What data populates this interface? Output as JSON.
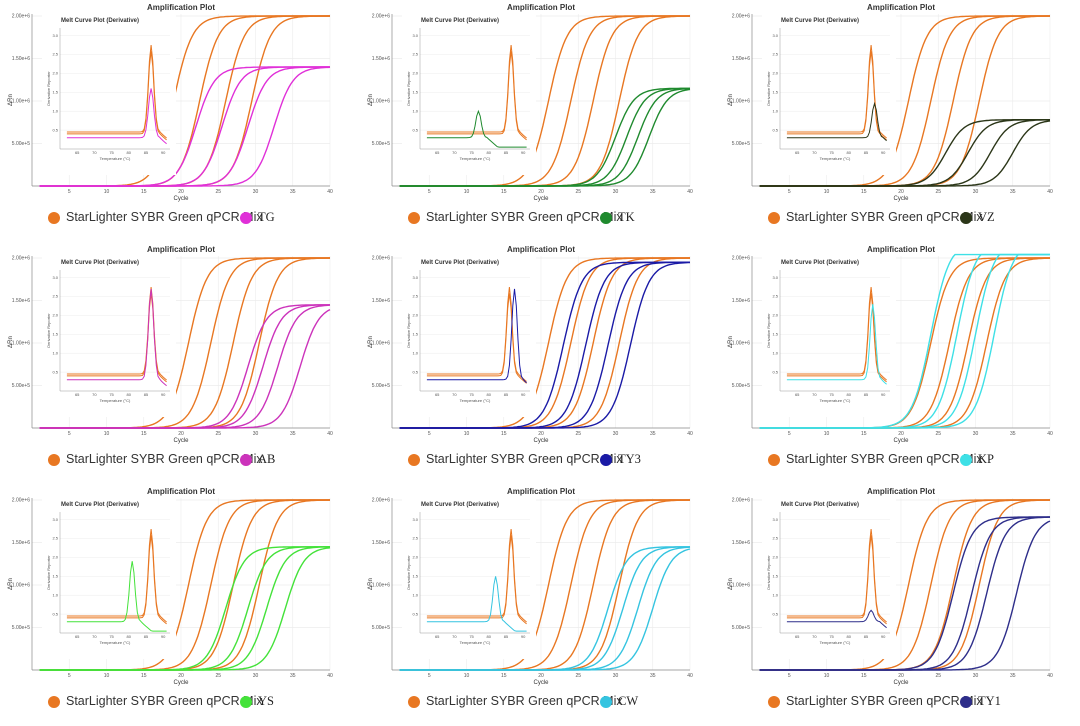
{
  "figure": {
    "reference_label": "StarLighter SYBR Green qPCR Mix",
    "reference_color": "#e87722"
  },
  "chart_data": [
    {
      "type": "line",
      "title": "Amplification Plot",
      "xlabel": "Cycle",
      "ylabel": "ΔRn",
      "xlim": [
        0,
        40
      ],
      "ylim": [
        0,
        2000000
      ],
      "xticks": [
        "5",
        "10",
        "15",
        "20",
        "25",
        "30",
        "35",
        "40"
      ],
      "yticks": [
        "5.00e+5",
        "1.00e+6",
        "1.50e+6",
        "2.00e+6"
      ],
      "series": [
        {
          "name": "StarLighter SYBR Green qPCR Mix",
          "color": "#e87722",
          "plateau": 2000000,
          "ct": [
            19,
            22.5,
            26,
            29.5
          ]
        },
        {
          "name": "TG",
          "color": "#e030d8",
          "plateau": 1400000,
          "ct": [
            22,
            25.5,
            29,
            32.5
          ]
        }
      ],
      "inset": {
        "title": "Melt Curve Plot (Derivative)",
        "xlabel": "Temperature (°C)",
        "ylabel": "Derivative Reporter",
        "xticks": [
          "65",
          "70",
          "75",
          "80",
          "85",
          "90"
        ],
        "yticks": [
          "0.5",
          "1.0",
          "1.5",
          "2.0",
          "2.5",
          "3.0"
        ],
        "ref_peak_temp": 86.5,
        "ref_peak_height": 2.3,
        "sample_peak_temp": 86.5,
        "sample_peak_height": 1.3
      }
    },
    {
      "type": "line",
      "title": "Amplification Plot",
      "xlabel": "Cycle",
      "ylabel": "ΔRn",
      "xlim": [
        0,
        40
      ],
      "ylim": [
        0,
        2000000
      ],
      "xticks": [
        "5",
        "10",
        "15",
        "20",
        "25",
        "30",
        "35",
        "40"
      ],
      "yticks": [
        "5.00e+5",
        "1.00e+6",
        "1.50e+6",
        "2.00e+6"
      ],
      "series": [
        {
          "name": "StarLighter SYBR Green qPCR Mix",
          "color": "#e87722",
          "plateau": 2000000,
          "ct": [
            21,
            24,
            27,
            30.5
          ]
        },
        {
          "name": "TK",
          "color": "#1f8a2e",
          "plateau": 1150000,
          "ct": [
            30,
            31.5,
            33,
            34.5
          ]
        }
      ],
      "inset": {
        "title": "Melt Curve Plot (Derivative)",
        "xlabel": "Temperature (°C)",
        "ylabel": "Derivative Reporter",
        "xticks": [
          "65",
          "70",
          "75",
          "80",
          "85",
          "90"
        ],
        "yticks": [
          "0.5",
          "1.0",
          "1.5",
          "2.0",
          "2.5",
          "3.0"
        ],
        "ref_peak_temp": 86.5,
        "ref_peak_height": 2.3,
        "sample_peak_temp": 77,
        "sample_peak_height": 0.7
      }
    },
    {
      "type": "line",
      "title": "Amplification Plot",
      "xlabel": "Cycle",
      "ylabel": "ΔRn",
      "xlim": [
        0,
        40
      ],
      "ylim": [
        0,
        2000000
      ],
      "xticks": [
        "5",
        "10",
        "15",
        "20",
        "25",
        "30",
        "35",
        "40"
      ],
      "yticks": [
        "5.00e+5",
        "1.00e+6",
        "1.50e+6",
        "2.00e+6"
      ],
      "series": [
        {
          "name": "StarLighter SYBR Green qPCR Mix",
          "color": "#e87722",
          "plateau": 2000000,
          "ct": [
            21,
            24,
            27,
            30.5
          ]
        },
        {
          "name": "VZ",
          "color": "#2b3618",
          "plateau": 780000,
          "ct": [
            26,
            29,
            32,
            35
          ]
        }
      ],
      "inset": {
        "title": "Melt Curve Plot (Derivative)",
        "xlabel": "Temperature (°C)",
        "ylabel": "Derivative Reporter",
        "xticks": [
          "65",
          "70",
          "75",
          "80",
          "85",
          "90"
        ],
        "yticks": [
          "0.5",
          "1.0",
          "1.5",
          "2.0",
          "2.5",
          "3.0"
        ],
        "ref_peak_temp": 86.5,
        "ref_peak_height": 2.3,
        "sample_peak_temp": 87.5,
        "sample_peak_height": 0.9
      }
    },
    {
      "type": "line",
      "title": "Amplification Plot",
      "xlabel": "Cycle",
      "ylabel": "ΔRn",
      "xlim": [
        0,
        40
      ],
      "ylim": [
        0,
        2000000
      ],
      "xticks": [
        "5",
        "10",
        "15",
        "20",
        "25",
        "30",
        "35",
        "40"
      ],
      "yticks": [
        "5.00e+5",
        "1.00e+6",
        "1.50e+6",
        "2.00e+6"
      ],
      "series": [
        {
          "name": "StarLighter SYBR Green qPCR Mix",
          "color": "#e87722",
          "plateau": 2000000,
          "ct": [
            21,
            24,
            27,
            30.5
          ]
        },
        {
          "name": "AB",
          "color": "#cc33bb",
          "plateau": 1450000,
          "ct": [
            29,
            31,
            33,
            36
          ]
        }
      ],
      "inset": {
        "title": "Melt Curve Plot (Derivative)",
        "xlabel": "Temperature (°C)",
        "ylabel": "Derivative Reporter",
        "xticks": [
          "65",
          "70",
          "75",
          "80",
          "85",
          "90"
        ],
        "yticks": [
          "0.5",
          "1.0",
          "1.5",
          "2.0",
          "2.5",
          "3.0"
        ],
        "ref_peak_temp": 86.5,
        "ref_peak_height": 2.3,
        "sample_peak_temp": 86.5,
        "sample_peak_height": 2.4
      }
    },
    {
      "type": "line",
      "title": "Amplification Plot",
      "xlabel": "Cycle",
      "ylabel": "ΔRn",
      "xlim": [
        0,
        40
      ],
      "ylim": [
        0,
        2000000
      ],
      "xticks": [
        "5",
        "10",
        "15",
        "20",
        "25",
        "30",
        "35",
        "40"
      ],
      "yticks": [
        "5.00e+5",
        "1.00e+6",
        "1.50e+6",
        "2.00e+6"
      ],
      "series": [
        {
          "name": "StarLighter SYBR Green qPCR Mix",
          "color": "#e87722",
          "plateau": 2000000,
          "ct": [
            21,
            24,
            27,
            30.5
          ]
        },
        {
          "name": "TY3",
          "color": "#1a1aa6",
          "plateau": 1950000,
          "ct": [
            23,
            26,
            29,
            32
          ]
        }
      ],
      "inset": {
        "title": "Melt Curve Plot (Derivative)",
        "xlabel": "Temperature (°C)",
        "ylabel": "Derivative Reporter",
        "xticks": [
          "65",
          "70",
          "75",
          "80",
          "85",
          "90"
        ],
        "yticks": [
          "0.5",
          "1.0",
          "1.5",
          "2.0",
          "2.5",
          "3.0"
        ],
        "ref_peak_temp": 86,
        "ref_peak_height": 2.3,
        "sample_peak_temp": 87.5,
        "sample_peak_height": 2.4
      }
    },
    {
      "type": "line",
      "title": "Amplification Plot",
      "xlabel": "Cycle",
      "ylabel": "ΔRn",
      "xlim": [
        0,
        40
      ],
      "ylim": [
        0,
        2000000
      ],
      "xticks": [
        "5",
        "10",
        "15",
        "20",
        "25",
        "30",
        "35",
        "40"
      ],
      "yticks": [
        "5.00e+5",
        "1.00e+6",
        "1.50e+6",
        "2.00e+6"
      ],
      "series": [
        {
          "name": "StarLighter SYBR Green qPCR Mix",
          "color": "#e87722",
          "plateau": 2000000,
          "ct": [
            24,
            26.5,
            29,
            31.5
          ]
        },
        {
          "name": "KP",
          "color": "#3ee0e6",
          "plateau": 2200000,
          "ct": [
            24,
            27.5,
            30,
            32.5
          ]
        }
      ],
      "inset": {
        "title": "Melt Curve Plot (Derivative)",
        "xlabel": "Temperature (°C)",
        "ylabel": "Derivative Reporter",
        "xticks": [
          "65",
          "70",
          "75",
          "80",
          "85",
          "90"
        ],
        "yticks": [
          "0.5",
          "1.0",
          "1.5",
          "2.0",
          "2.5",
          "3.0"
        ],
        "ref_peak_temp": 86.5,
        "ref_peak_height": 2.3,
        "sample_peak_temp": 87,
        "sample_peak_height": 2.0
      }
    },
    {
      "type": "line",
      "title": "Amplification Plot",
      "xlabel": "Cycle",
      "ylabel": "ΔRn",
      "xlim": [
        0,
        40
      ],
      "ylim": [
        0,
        2000000
      ],
      "xticks": [
        "5",
        "10",
        "15",
        "20",
        "25",
        "30",
        "35",
        "40"
      ],
      "yticks": [
        "5.00e+5",
        "1.00e+6",
        "1.50e+6",
        "2.00e+6"
      ],
      "series": [
        {
          "name": "StarLighter SYBR Green qPCR Mix",
          "color": "#e87722",
          "plateau": 2000000,
          "ct": [
            21,
            24,
            27,
            30.5
          ]
        },
        {
          "name": "YS",
          "color": "#44e23a",
          "plateau": 1450000,
          "ct": [
            26,
            29,
            31.5,
            34
          ]
        }
      ],
      "inset": {
        "title": "Melt Curve Plot (Derivative)",
        "xlabel": "Temperature (°C)",
        "ylabel": "Derivative Reporter",
        "xticks": [
          "65",
          "70",
          "75",
          "80",
          "85",
          "90"
        ],
        "yticks": [
          "0.5",
          "1.0",
          "1.5",
          "2.0",
          "2.5",
          "3.0"
        ],
        "ref_peak_temp": 86.5,
        "ref_peak_height": 2.3,
        "sample_peak_temp": 81,
        "sample_peak_height": 1.6
      }
    },
    {
      "type": "line",
      "title": "Amplification Plot",
      "xlabel": "Cycle",
      "ylabel": "ΔRn",
      "xlim": [
        0,
        40
      ],
      "ylim": [
        0,
        2000000
      ],
      "xticks": [
        "5",
        "10",
        "15",
        "20",
        "25",
        "30",
        "35",
        "40"
      ],
      "yticks": [
        "5.00e+5",
        "1.00e+6",
        "1.50e+6",
        "2.00e+6"
      ],
      "series": [
        {
          "name": "StarLighter SYBR Green qPCR Mix",
          "color": "#e87722",
          "plateau": 2000000,
          "ct": [
            21,
            24,
            27,
            30.5
          ]
        },
        {
          "name": "CW",
          "color": "#35c4e0",
          "plateau": 1450000,
          "ct": [
            29,
            31,
            33,
            35
          ]
        }
      ],
      "inset": {
        "title": "Melt Curve Plot (Derivative)",
        "xlabel": "Temperature (°C)",
        "ylabel": "Derivative Reporter",
        "xticks": [
          "65",
          "70",
          "75",
          "80",
          "85",
          "90"
        ],
        "yticks": [
          "0.5",
          "1.0",
          "1.5",
          "2.0",
          "2.5",
          "3.0"
        ],
        "ref_peak_temp": 86.5,
        "ref_peak_height": 2.3,
        "sample_peak_temp": 82,
        "sample_peak_height": 1.2
      }
    },
    {
      "type": "line",
      "title": "Amplification Plot",
      "xlabel": "Cycle",
      "ylabel": "ΔRn",
      "xlim": [
        0,
        40
      ],
      "ylim": [
        0,
        2000000
      ],
      "xticks": [
        "5",
        "10",
        "15",
        "20",
        "25",
        "30",
        "35",
        "40"
      ],
      "yticks": [
        "5.00e+5",
        "1.00e+6",
        "1.50e+6",
        "2.00e+6"
      ],
      "series": [
        {
          "name": "StarLighter SYBR Green qPCR Mix",
          "color": "#e87722",
          "plateau": 2000000,
          "ct": [
            21,
            24,
            27,
            30.5
          ]
        },
        {
          "name": "TY1",
          "color": "#2e2e8a",
          "plateau": 1800000,
          "ct": [
            27,
            29.5,
            31.5,
            35.5
          ]
        }
      ],
      "inset": {
        "title": "Melt Curve Plot (Derivative)",
        "xlabel": "Temperature (°C)",
        "ylabel": "Derivative Reporter",
        "xticks": [
          "65",
          "70",
          "75",
          "80",
          "85",
          "90"
        ],
        "yticks": [
          "0.5",
          "1.0",
          "1.5",
          "2.0",
          "2.5",
          "3.0"
        ],
        "ref_peak_temp": 86.5,
        "ref_peak_height": 2.3,
        "sample_peak_temp": 86.5,
        "sample_peak_height": 0.3
      }
    }
  ]
}
